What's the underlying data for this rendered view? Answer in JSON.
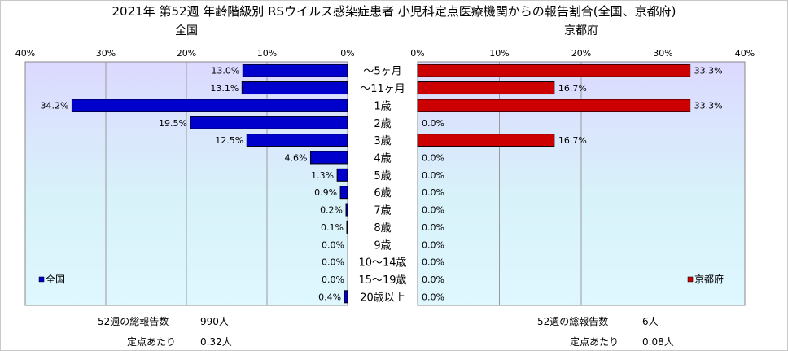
{
  "chart_data": {
    "type": "bar",
    "title": "2021年 第52週 年齢階級別 RSウイルス感染症患者 小児科定点医療機関からの報告割合(全国、京都府)",
    "categories": [
      "～5ヶ月",
      "～11ヶ月",
      "1歳",
      "2歳",
      "3歳",
      "4歳",
      "5歳",
      "6歳",
      "7歳",
      "8歳",
      "9歳",
      "10～14歳",
      "15～19歳",
      "20歳以上"
    ],
    "xlim": [
      0,
      40
    ],
    "ticks": [
      0,
      10,
      20,
      30,
      40
    ],
    "tick_labels": [
      "0%",
      "10%",
      "20%",
      "30%",
      "40%"
    ],
    "grid": true,
    "panels": [
      {
        "name": "全国",
        "panel_title": "全国",
        "direction": "left",
        "color": "#0000cc",
        "legend_label": "全国",
        "legend_position": "bottom-left",
        "values": [
          13.0,
          13.1,
          34.2,
          19.5,
          12.5,
          4.6,
          1.3,
          0.9,
          0.2,
          0.1,
          0.0,
          0.0,
          0.0,
          0.4
        ],
        "value_labels": [
          "13.0%",
          "13.1%",
          "34.2%",
          "19.5%",
          "12.5%",
          "4.6%",
          "1.3%",
          "0.9%",
          "0.2%",
          "0.1%",
          "0.0%",
          "0.0%",
          "0.0%",
          "0.4%"
        ]
      },
      {
        "name": "京都府",
        "panel_title": "京都府",
        "direction": "right",
        "color": "#cc0000",
        "legend_label": "京都府",
        "legend_position": "bottom-right",
        "values": [
          33.3,
          16.7,
          33.3,
          0.0,
          16.7,
          0.0,
          0.0,
          0.0,
          0.0,
          0.0,
          0.0,
          0.0,
          0.0,
          0.0
        ],
        "value_labels": [
          "33.3%",
          "16.7%",
          "33.3%",
          "0.0%",
          "16.7%",
          "0.0%",
          "0.0%",
          "0.0%",
          "0.0%",
          "0.0%",
          "0.0%",
          "0.0%",
          "0.0%",
          "0.0%"
        ]
      }
    ]
  },
  "summary": {
    "national": {
      "total_label": "52週の総報告数",
      "total_value": "990人",
      "per_site_label": "定点あたり",
      "per_site_value": "0.32人"
    },
    "kyoto": {
      "total_label": "52週の総報告数",
      "total_value": "6人",
      "per_site_label": "定点あたり",
      "per_site_value": "0.08人"
    }
  }
}
